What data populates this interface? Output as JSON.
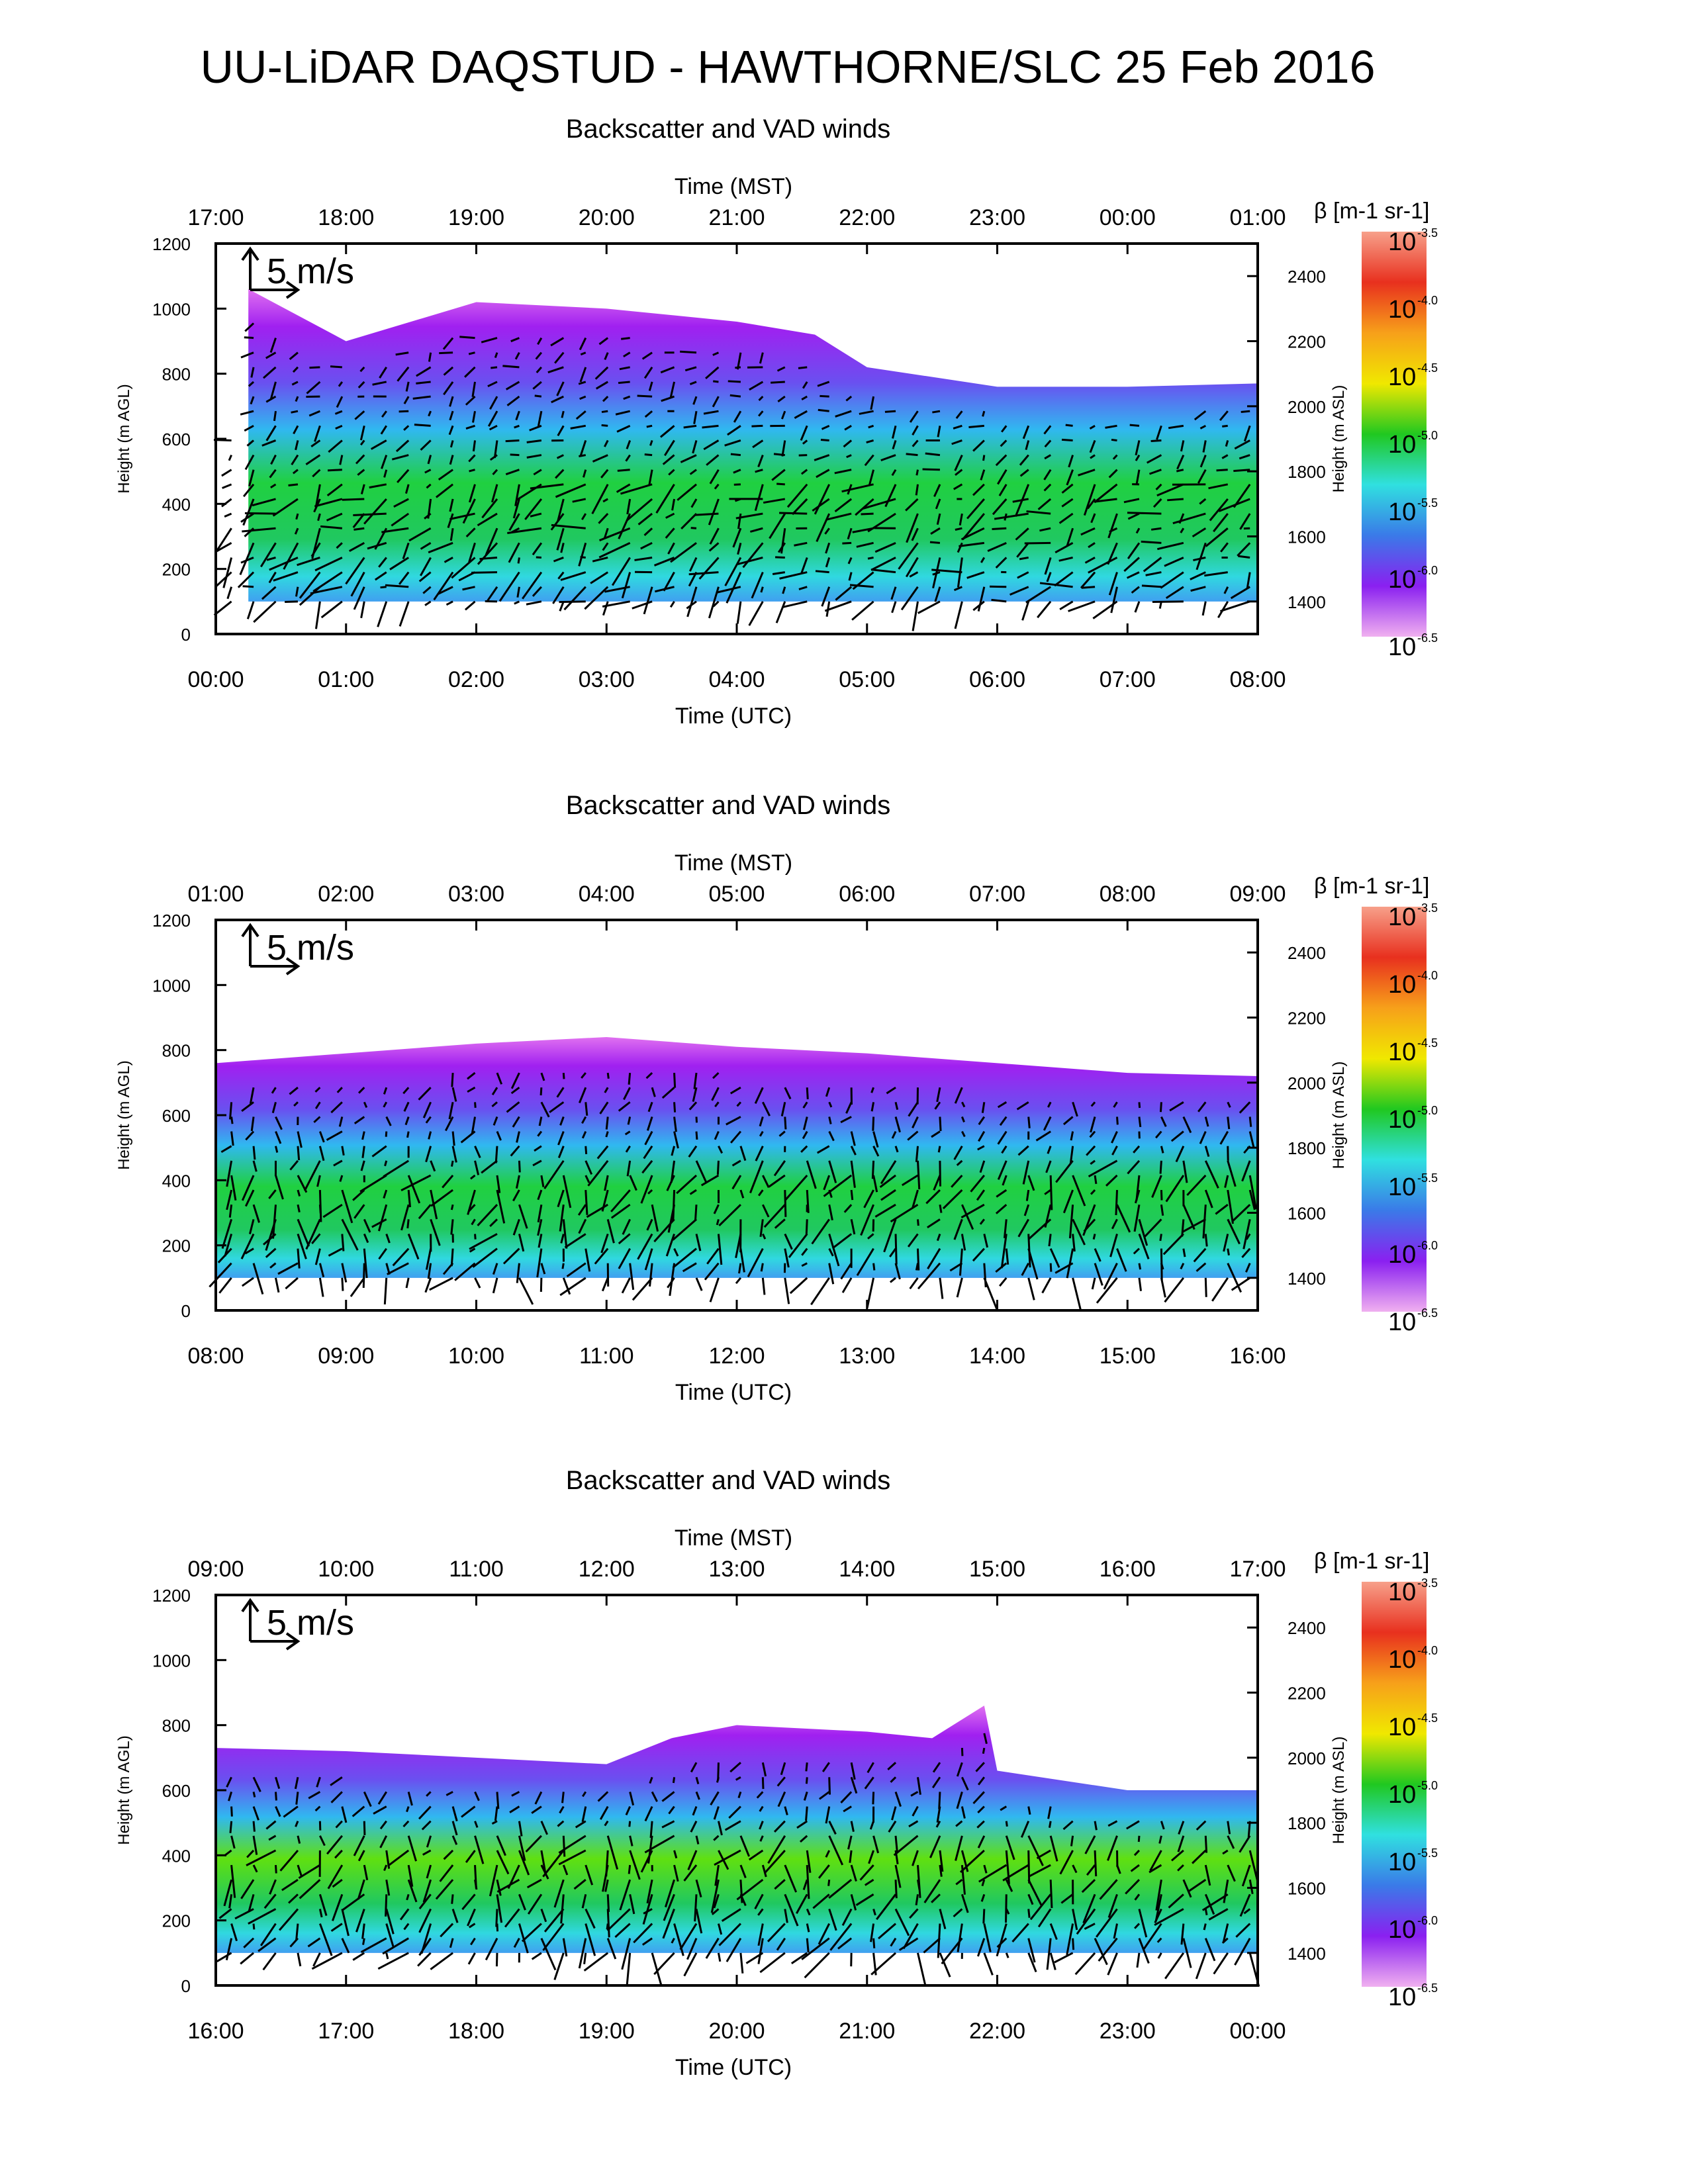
{
  "title": "UU-LiDAR DAQSTUD - HAWTHORNE/SLC 25 Feb 2016",
  "scale_arrow_label": "5 m/s",
  "colorbar": {
    "label": "β [m-1 sr-1]",
    "exponents": [
      "-3.5",
      "-4.0",
      "-4.5",
      "-5.0",
      "-5.5",
      "-6.0",
      "-6.5"
    ],
    "base": "10",
    "colors": [
      "#f7a08a",
      "#e8301e",
      "#f7a01a",
      "#f0e800",
      "#20c820",
      "#30e0e0",
      "#3a7ae8",
      "#8a20f0",
      "#f0b0f0"
    ]
  },
  "chart_data": [
    {
      "type": "heatmap",
      "title": "Backscatter and VAD winds",
      "xlabel": "Time (UTC)",
      "xlabel_top": "Time (MST)",
      "ylabel": "Height (m AGL)",
      "ylabel_right": "Height (m ASL)",
      "x_ticks": [
        "00:00",
        "01:00",
        "02:00",
        "03:00",
        "04:00",
        "05:00",
        "06:00",
        "07:00",
        "08:00"
      ],
      "x_ticks_top": [
        "17:00",
        "18:00",
        "19:00",
        "20:00",
        "21:00",
        "22:00",
        "23:00",
        "00:00",
        "01:00"
      ],
      "y_ticks": [
        "0",
        "200",
        "400",
        "600",
        "800",
        "1000",
        "1200"
      ],
      "y_ticks_right": [
        "1400",
        "1600",
        "1800",
        "2000",
        "2200",
        "2400"
      ],
      "xlim": [
        0,
        8
      ],
      "ylim": [
        0,
        1200
      ],
      "aerosol_top_m_agl": [
        [
          0.25,
          1060
        ],
        [
          1.0,
          900
        ],
        [
          2.0,
          1020
        ],
        [
          3.0,
          1000
        ],
        [
          4.0,
          960
        ],
        [
          4.6,
          920
        ],
        [
          5.0,
          820
        ],
        [
          6.0,
          760
        ],
        [
          7.0,
          760
        ],
        [
          8.0,
          770
        ]
      ],
      "aerosol_bottom_m_agl": 100,
      "peak_log_beta": -5.1
    },
    {
      "type": "heatmap",
      "title": "Backscatter and VAD winds",
      "xlabel": "Time (UTC)",
      "xlabel_top": "Time (MST)",
      "ylabel": "Height (m AGL)",
      "ylabel_right": "Height (m ASL)",
      "x_ticks": [
        "08:00",
        "09:00",
        "10:00",
        "11:00",
        "12:00",
        "13:00",
        "14:00",
        "15:00",
        "16:00"
      ],
      "x_ticks_top": [
        "01:00",
        "02:00",
        "03:00",
        "04:00",
        "05:00",
        "06:00",
        "07:00",
        "08:00",
        "09:00"
      ],
      "y_ticks": [
        "0",
        "200",
        "400",
        "600",
        "800",
        "1000",
        "1200"
      ],
      "y_ticks_right": [
        "1400",
        "1600",
        "1800",
        "2000",
        "2200",
        "2400"
      ],
      "xlim": [
        8,
        16
      ],
      "ylim": [
        0,
        1200
      ],
      "aerosol_top_m_agl": [
        [
          8.0,
          760
        ],
        [
          9.0,
          790
        ],
        [
          10.0,
          820
        ],
        [
          11.0,
          840
        ],
        [
          12.0,
          810
        ],
        [
          13.0,
          790
        ],
        [
          14.0,
          760
        ],
        [
          15.0,
          730
        ],
        [
          16.0,
          720
        ]
      ],
      "aerosol_bottom_m_agl": 100,
      "peak_log_beta": -5.2
    },
    {
      "type": "heatmap",
      "title": "Backscatter and VAD winds",
      "xlabel": "Time (UTC)",
      "xlabel_top": "Time (MST)",
      "ylabel": "Height (m AGL)",
      "ylabel_right": "Height (m ASL)",
      "x_ticks": [
        "16:00",
        "17:00",
        "18:00",
        "19:00",
        "20:00",
        "21:00",
        "22:00",
        "23:00",
        "00:00"
      ],
      "x_ticks_top": [
        "09:00",
        "10:00",
        "11:00",
        "12:00",
        "13:00",
        "14:00",
        "15:00",
        "16:00",
        "17:00"
      ],
      "y_ticks": [
        "0",
        "200",
        "400",
        "600",
        "800",
        "1000",
        "1200"
      ],
      "y_ticks_right": [
        "1400",
        "1600",
        "1800",
        "2000",
        "2200",
        "2400"
      ],
      "xlim": [
        16,
        24
      ],
      "ylim": [
        0,
        1200
      ],
      "aerosol_top_m_agl": [
        [
          16.0,
          730
        ],
        [
          17.0,
          720
        ],
        [
          18.0,
          700
        ],
        [
          19.0,
          680
        ],
        [
          19.5,
          760
        ],
        [
          20.0,
          800
        ],
        [
          21.0,
          780
        ],
        [
          21.5,
          760
        ],
        [
          21.9,
          860
        ],
        [
          22.0,
          660
        ],
        [
          23.0,
          600
        ],
        [
          24.0,
          600
        ]
      ],
      "aerosol_bottom_m_agl": 100,
      "peak_log_beta": -4.9
    }
  ]
}
